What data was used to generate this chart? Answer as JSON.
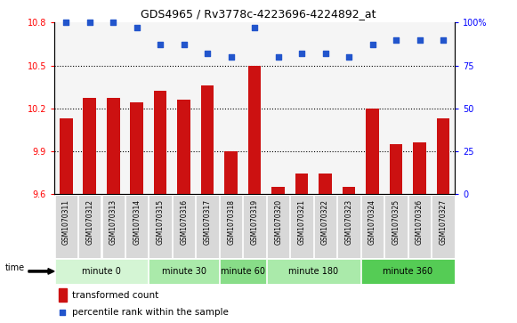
{
  "title": "GDS4965 / Rv3778c-4223696-4224892_at",
  "samples": [
    "GSM1070311",
    "GSM1070312",
    "GSM1070313",
    "GSM1070314",
    "GSM1070315",
    "GSM1070316",
    "GSM1070317",
    "GSM1070318",
    "GSM1070319",
    "GSM1070320",
    "GSM1070321",
    "GSM1070322",
    "GSM1070323",
    "GSM1070324",
    "GSM1070325",
    "GSM1070326",
    "GSM1070327"
  ],
  "bar_values": [
    10.13,
    10.27,
    10.27,
    10.24,
    10.32,
    10.26,
    10.36,
    9.9,
    10.5,
    9.65,
    9.74,
    9.74,
    9.65,
    10.2,
    9.95,
    9.96,
    10.13
  ],
  "dot_values": [
    100,
    100,
    100,
    97,
    87,
    87,
    82,
    80,
    97,
    80,
    82,
    82,
    80,
    87,
    90,
    90,
    90
  ],
  "ylim_left": [
    9.6,
    10.8
  ],
  "ylim_right": [
    0,
    100
  ],
  "yticks_left": [
    9.6,
    9.9,
    10.2,
    10.5,
    10.8
  ],
  "yticks_right": [
    0,
    25,
    50,
    75,
    100
  ],
  "ytick_labels_right": [
    "0",
    "25",
    "50",
    "75",
    "100%"
  ],
  "hlines": [
    9.9,
    10.2,
    10.5
  ],
  "bar_color": "#cc1111",
  "dot_color": "#2255cc",
  "plot_bg": "#f5f5f5",
  "tick_bg": "#d8d8d8",
  "groups": [
    {
      "label": "minute 0",
      "start": 0,
      "end": 4,
      "color": "#d4f5d4"
    },
    {
      "label": "minute 30",
      "start": 4,
      "end": 7,
      "color": "#aaeaaa"
    },
    {
      "label": "minute 60",
      "start": 7,
      "end": 9,
      "color": "#88dd88"
    },
    {
      "label": "minute 180",
      "start": 9,
      "end": 13,
      "color": "#aaeaaa"
    },
    {
      "label": "minute 360",
      "start": 13,
      "end": 17,
      "color": "#55cc55"
    }
  ],
  "legend_bar_label": "transformed count",
  "legend_dot_label": "percentile rank within the sample",
  "time_label": "time"
}
